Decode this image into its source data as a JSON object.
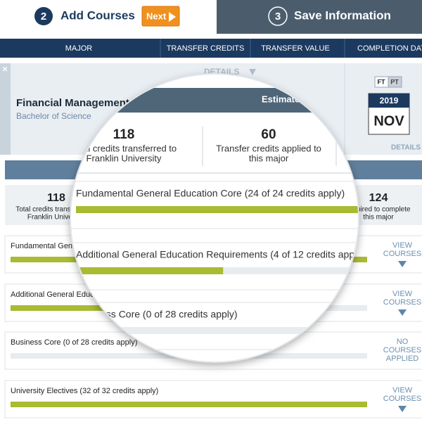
{
  "steps": [
    {
      "number": "2",
      "label": "Add Courses"
    },
    {
      "number": "3",
      "label": "Save Information"
    }
  ],
  "next_button": "Next",
  "columns": [
    "MAJOR",
    "TRANSFER CREDITS",
    "TRANSFER VALUE",
    "COMPLETION DATE"
  ],
  "program": {
    "name": "Financial Management",
    "degree": "Bachelor of Science",
    "details_link": "DETAILS",
    "estimated_label": "Estimated",
    "schedule_options": [
      "FT",
      "PT"
    ],
    "completion_year": "2019",
    "completion_month": "NOV",
    "date_details_link": "DETAILS"
  },
  "stats": [
    {
      "value": "118",
      "label": [
        "Total credits transferred to",
        "Franklin University"
      ]
    },
    {
      "value": "60",
      "label": [
        "Transfer credits applied to",
        "this major"
      ]
    },
    {
      "value": "124",
      "label": [
        "required to complete",
        "this major"
      ]
    }
  ],
  "requirements": [
    {
      "name": "Fundamental General Education Core (24 of 24 credits apply)",
      "progress": 100,
      "action": [
        "VIEW",
        "COURSES"
      ]
    },
    {
      "name": "Additional General Education Requirements (4 of 12 credits apply)",
      "progress": 33,
      "action": [
        "VIEW",
        "COURSES"
      ]
    },
    {
      "name": "Business Core (0 of 28 credits apply)",
      "progress": 0,
      "action": [
        "NO",
        "COURSES",
        "APPLIED"
      ]
    },
    {
      "name": "University Electives (32 of 32 credits apply)",
      "progress": 100,
      "action": [
        "VIEW",
        "COURSES"
      ]
    }
  ]
}
